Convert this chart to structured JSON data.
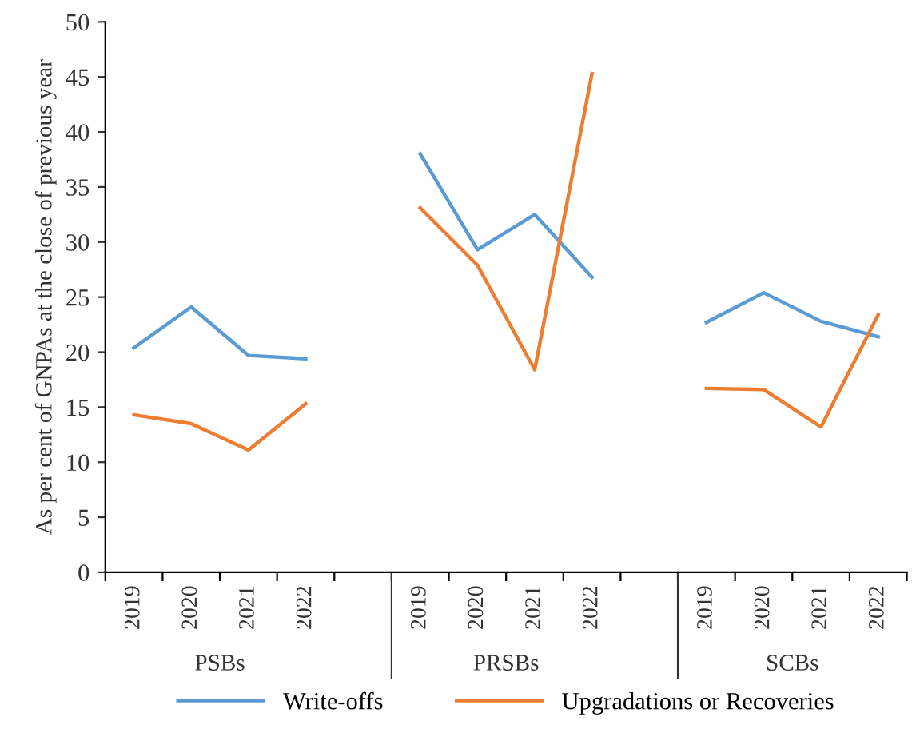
{
  "chart_data": {
    "type": "line",
    "ylabel": "As per cent of GNPAs at the close of previous year",
    "categories": [
      "2019",
      "2020",
      "2021",
      "2022",
      null,
      "2019",
      "2020",
      "2021",
      "2022",
      null,
      "2019",
      "2020",
      "2021",
      "2022"
    ],
    "series": [
      {
        "name": "Write-offs",
        "color": "#5b9bd5",
        "values": [
          20.4,
          24.1,
          19.7,
          19.4,
          null,
          38.0,
          29.3,
          32.5,
          26.8,
          null,
          22.7,
          25.4,
          22.8,
          21.4
        ]
      },
      {
        "name": "Upgradations or Recoveries",
        "color": "#ed7d31",
        "values": [
          14.3,
          13.5,
          11.1,
          15.3,
          null,
          33.1,
          27.9,
          18.4,
          45.3,
          null,
          16.7,
          16.6,
          13.2,
          23.4
        ]
      }
    ],
    "annotations": [
      "PSBs",
      "PRSBs",
      "SCBs"
    ],
    "ylim": [
      0,
      50
    ],
    "yticks": [
      0,
      5,
      10,
      15,
      20,
      25,
      30,
      35,
      40,
      45,
      50
    ],
    "grid": false,
    "legend": "bottom",
    "marker": "none",
    "line_style": "solid"
  }
}
